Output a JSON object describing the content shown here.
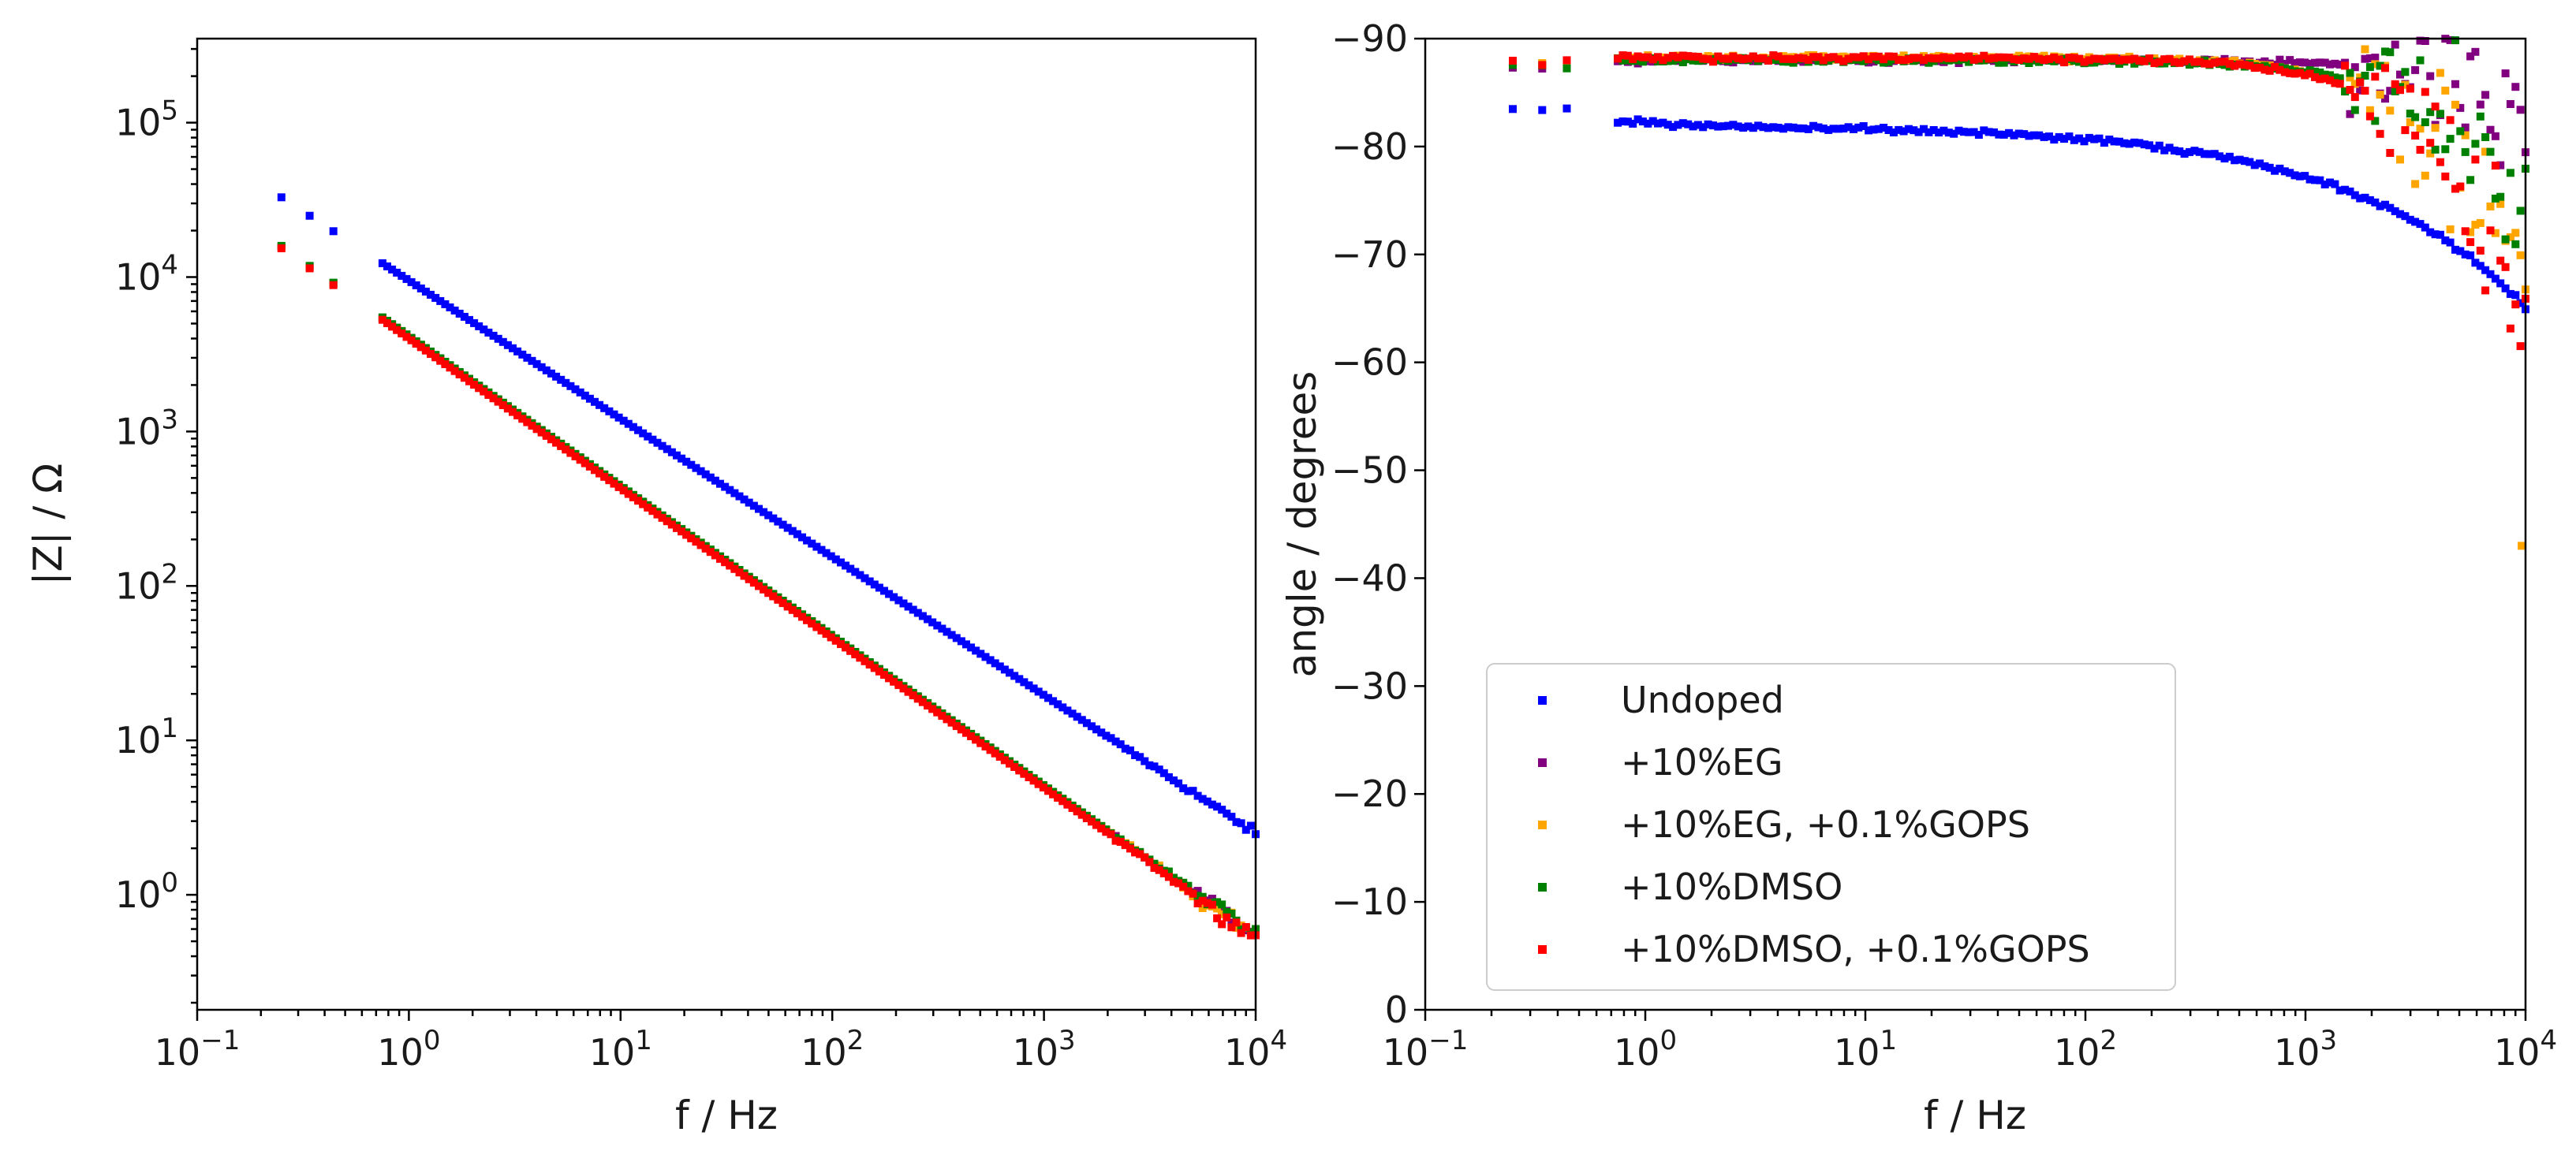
{
  "chart_data": [
    {
      "type": "scatter",
      "panel": "left",
      "title": "",
      "xlabel": "f / Hz",
      "ylabel": "|Z| / Ω",
      "xscale": "log",
      "yscale": "log",
      "xlim": [
        0.1,
        10000
      ],
      "ylim": [
        0.18,
        350000
      ],
      "xticks": [
        {
          "value": 0.1,
          "base": "10",
          "exp": "−1"
        },
        {
          "value": 1,
          "base": "10",
          "exp": "0"
        },
        {
          "value": 10,
          "base": "10",
          "exp": "1"
        },
        {
          "value": 100,
          "base": "10",
          "exp": "2"
        },
        {
          "value": 1000,
          "base": "10",
          "exp": "3"
        },
        {
          "value": 10000,
          "base": "10",
          "exp": "4"
        }
      ],
      "yticks": [
        {
          "value": 1,
          "base": "10",
          "exp": "0"
        },
        {
          "value": 10,
          "base": "10",
          "exp": "1"
        },
        {
          "value": 100,
          "base": "10",
          "exp": "2"
        },
        {
          "value": 1000,
          "base": "10",
          "exp": "3"
        },
        {
          "value": 10000,
          "base": "10",
          "exp": "4"
        },
        {
          "value": 100000,
          "base": "10",
          "exp": "5"
        }
      ],
      "series": [
        {
          "name": "Undoped",
          "color": "#0000ff",
          "model": "power",
          "a": 9500,
          "b": -0.895
        },
        {
          "name": "+10%EG",
          "color": "#800080",
          "model": "power",
          "a": 4100,
          "b": -0.97
        },
        {
          "name": "+10%EG, +0.1%GOPS",
          "color": "#ffa500",
          "model": "power",
          "a": 4100,
          "b": -0.97
        },
        {
          "name": "+10%DMSO",
          "color": "#008000",
          "model": "power",
          "a": 4150,
          "b": -0.97
        },
        {
          "name": "+10%DMSO, +0.1%GOPS",
          "color": "#ff0000",
          "model": "power",
          "a": 4000,
          "b": -0.97
        }
      ]
    },
    {
      "type": "scatter",
      "panel": "right",
      "title": "",
      "xlabel": "f / Hz",
      "ylabel": "angle / degrees",
      "xscale": "log",
      "yscale": "linear",
      "y_inverted": true,
      "xlim": [
        0.1,
        10000
      ],
      "ylim": [
        0,
        -90
      ],
      "xticks": [
        {
          "value": 0.1,
          "base": "10",
          "exp": "−1"
        },
        {
          "value": 1,
          "base": "10",
          "exp": "0"
        },
        {
          "value": 10,
          "base": "10",
          "exp": "1"
        },
        {
          "value": 100,
          "base": "10",
          "exp": "2"
        },
        {
          "value": 1000,
          "base": "10",
          "exp": "3"
        },
        {
          "value": 10000,
          "base": "10",
          "exp": "4"
        }
      ],
      "yticks": [
        "0",
        "−10",
        "−20",
        "−30",
        "−40",
        "−50",
        "−60",
        "−70",
        "−80",
        "−90"
      ],
      "legend_position": "lower-left",
      "series": [
        {
          "name": "Undoped",
          "color": "#0000ff",
          "model": "phase",
          "base": -83.5,
          "flat": -82,
          "end": -65
        },
        {
          "name": "+10%EG",
          "color": "#800080",
          "model": "phase",
          "base": -87.5,
          "flat": -88,
          "end": -84
        },
        {
          "name": "+10%EG, +0.1%GOPS",
          "color": "#ffa500",
          "model": "phase",
          "base": -87.5,
          "flat": -88.3,
          "end": -66
        },
        {
          "name": "+10%DMSO",
          "color": "#008000",
          "model": "phase",
          "base": -87.3,
          "flat": -88,
          "end": -72
        },
        {
          "name": "+10%DMSO, +0.1%GOPS",
          "color": "#ff0000",
          "model": "phase",
          "base": -87.8,
          "flat": -88.2,
          "end": -63
        }
      ]
    }
  ],
  "legend": {
    "entries": [
      "Undoped",
      "+10%EG",
      "+10%EG, +0.1%GOPS",
      "+10%DMSO",
      "+10%DMSO, +0.1%GOPS"
    ],
    "colors": [
      "#0000ff",
      "#800080",
      "#ffa500",
      "#008000",
      "#ff0000"
    ]
  },
  "frequencies_hz": {
    "low_points": [
      0.25,
      0.34,
      0.44
    ],
    "sweep_start": 0.75,
    "sweep_end": 10000,
    "points_per_decade": 44
  }
}
